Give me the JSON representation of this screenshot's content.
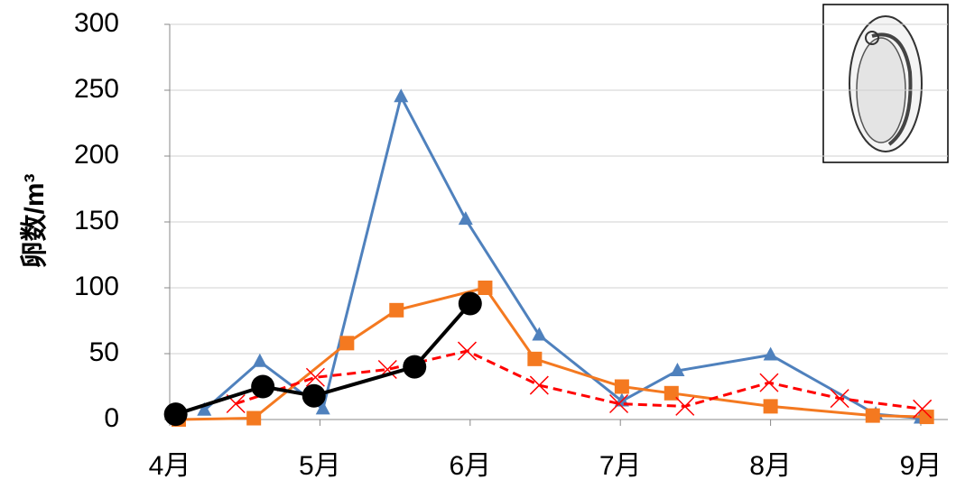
{
  "chart_data": {
    "type": "line",
    "y_label": "卵数/m³",
    "xlim": [
      4,
      9.05
    ],
    "xticks": [
      {
        "value": 4,
        "label": "4月"
      },
      {
        "value": 5,
        "label": "5月"
      },
      {
        "value": 6,
        "label": "6月"
      },
      {
        "value": 7,
        "label": "7月"
      },
      {
        "value": 8,
        "label": "8月"
      },
      {
        "value": 9,
        "label": "9月"
      }
    ],
    "ylim": [
      0,
      300
    ],
    "yticks": [
      0,
      50,
      100,
      150,
      200,
      250,
      300
    ],
    "grid": true,
    "series": [
      {
        "color": "#4f81bd",
        "marker": "triangle",
        "dashed": false,
        "x": [
          4.23,
          4.6,
          5.02,
          5.54,
          5.97,
          6.46,
          7.01,
          7.38,
          8.0,
          8.7,
          9.0
        ],
        "values": [
          7,
          44,
          8,
          245,
          152,
          64,
          14,
          37,
          49,
          4,
          1
        ]
      },
      {
        "color": "#f47920",
        "marker": "square",
        "dashed": false,
        "x": [
          4.06,
          4.56,
          5.18,
          5.51,
          6.1,
          6.43,
          7.01,
          7.34,
          8.0,
          8.68,
          9.04
        ],
        "values": [
          0,
          1,
          58,
          83,
          100,
          46,
          25,
          20,
          10,
          3,
          2
        ]
      },
      {
        "color": "#ff0000",
        "marker": "x",
        "dashed": true,
        "x": [
          4.44,
          4.97,
          5.45,
          5.98,
          6.46,
          6.99,
          7.43,
          7.99,
          8.46,
          9.01
        ],
        "values": [
          12,
          32,
          38,
          52,
          26,
          12,
          10,
          28,
          16,
          8
        ]
      },
      {
        "color": "#000000",
        "marker": "circle",
        "dashed": false,
        "x": [
          4.04,
          4.62,
          4.96,
          5.63,
          6.0
        ],
        "values": [
          4,
          25,
          18,
          40,
          88
        ]
      }
    ]
  }
}
